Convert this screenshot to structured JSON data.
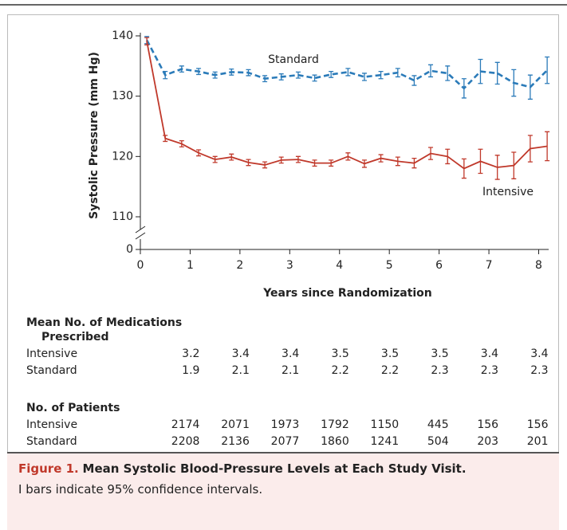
{
  "chart_data": {
    "type": "line",
    "x_label": "Years since Randomization",
    "y_label": "Systolic Pressure (mm Hg)",
    "x": [
      0.13,
      0.5,
      0.83,
      1.17,
      1.5,
      1.83,
      2.17,
      2.5,
      2.83,
      3.17,
      3.5,
      3.83,
      4.17,
      4.5,
      4.83,
      5.17,
      5.5,
      5.83,
      6.17,
      6.5,
      6.83,
      7.17,
      7.5,
      7.83,
      8.17
    ],
    "series": [
      {
        "name": "Standard",
        "color": "#2b7bb9",
        "dashed": true,
        "values": [
          139.3,
          133.5,
          134.5,
          134.1,
          133.5,
          134.0,
          133.9,
          132.9,
          133.2,
          133.5,
          133.0,
          133.6,
          134.0,
          133.2,
          133.5,
          133.9,
          132.6,
          134.2,
          133.8,
          131.3,
          134.1,
          133.8,
          132.2,
          131.5,
          134.3
        ],
        "errors": [
          0.6,
          0.6,
          0.5,
          0.5,
          0.5,
          0.5,
          0.5,
          0.5,
          0.5,
          0.5,
          0.5,
          0.5,
          0.6,
          0.6,
          0.6,
          0.7,
          0.8,
          1.0,
          1.2,
          1.6,
          2.0,
          1.8,
          2.2,
          2.0,
          2.2
        ]
      },
      {
        "name": "Intensive",
        "color": "#c0392b",
        "dashed": false,
        "values": [
          139.1,
          123.0,
          122.1,
          120.6,
          119.5,
          119.9,
          119.0,
          118.6,
          119.4,
          119.5,
          118.9,
          118.9,
          120.0,
          118.8,
          119.7,
          119.2,
          118.9,
          120.5,
          120.0,
          118.0,
          119.2,
          118.2,
          118.5,
          121.3,
          121.7
        ],
        "errors": [
          0.6,
          0.5,
          0.5,
          0.5,
          0.5,
          0.5,
          0.5,
          0.5,
          0.5,
          0.5,
          0.5,
          0.5,
          0.6,
          0.6,
          0.6,
          0.7,
          0.8,
          1.0,
          1.2,
          1.6,
          2.0,
          2.0,
          2.2,
          2.2,
          2.4
        ]
      }
    ],
    "xlim": [
      0,
      8.2
    ],
    "xticks": [
      0,
      1,
      2,
      3,
      4,
      5,
      6,
      7,
      8
    ],
    "ylim": [
      110,
      140
    ],
    "yticks": [
      0,
      110,
      120,
      130,
      140
    ],
    "axis_break": true
  },
  "tables": [
    {
      "title": [
        "Mean No. of Medications",
        "Prescribed"
      ],
      "rows": [
        {
          "name": "Intensive",
          "values": [
            3.2,
            3.4,
            3.4,
            3.5,
            3.5,
            3.5,
            3.4,
            3.4
          ]
        },
        {
          "name": "Standard",
          "values": [
            1.9,
            2.1,
            2.1,
            2.2,
            2.2,
            2.3,
            2.3,
            2.3
          ]
        }
      ]
    },
    {
      "title": [
        "No. of Patients"
      ],
      "rows": [
        {
          "name": "Intensive",
          "values": [
            2174,
            2071,
            1973,
            1792,
            1150,
            445,
            156,
            156
          ]
        },
        {
          "name": "Standard",
          "values": [
            2208,
            2136,
            2077,
            1860,
            1241,
            504,
            203,
            201
          ]
        }
      ]
    }
  ],
  "caption": {
    "label": "Figure 1.",
    "title": "Mean Systolic Blood-Pressure Levels at Each Study Visit.",
    "note": "I bars indicate 95% confidence intervals."
  }
}
